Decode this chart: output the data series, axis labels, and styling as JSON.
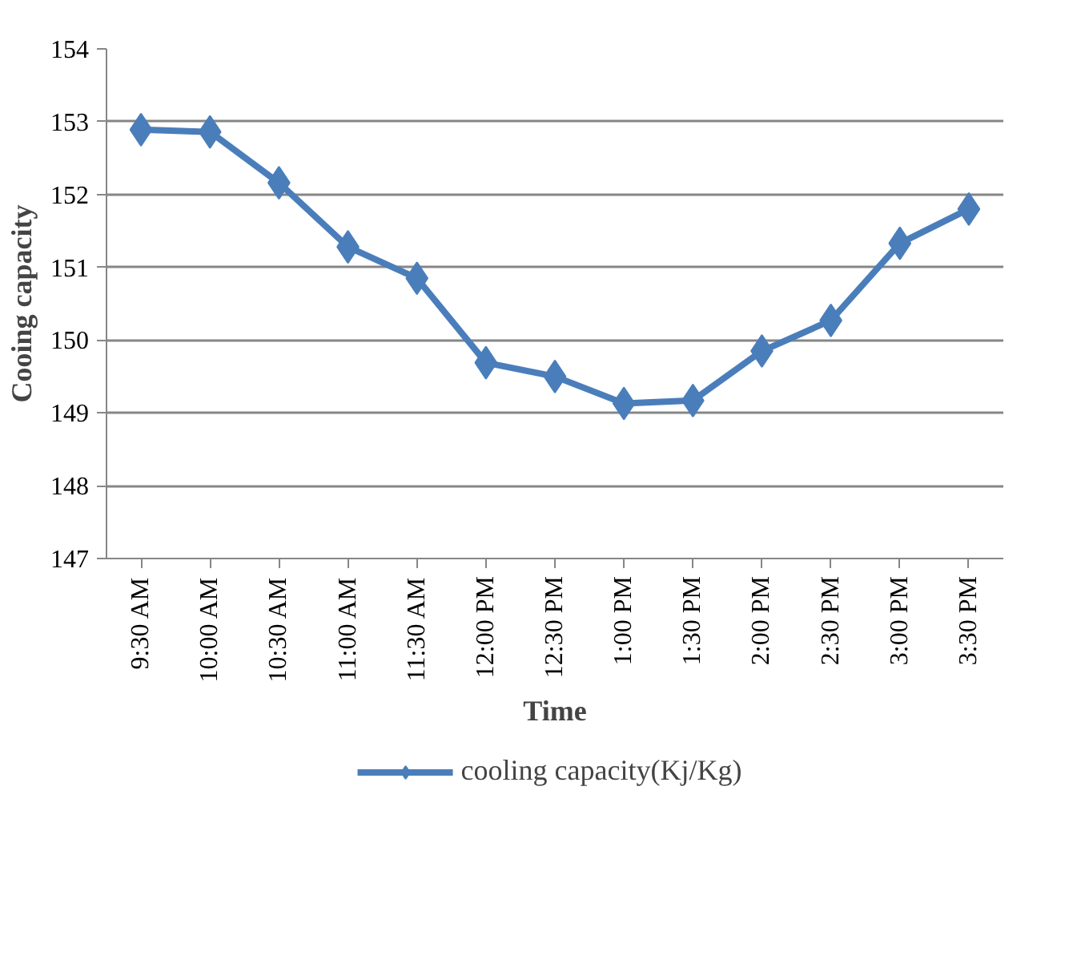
{
  "chart_data": {
    "type": "line",
    "xlabel": "Time",
    "ylabel": "Cooing capacity",
    "categories": [
      "9:30 AM",
      "10:00 AM",
      "10:30 AM",
      "11:00 AM",
      "11:30 AM",
      "12:00 PM",
      "12:30 PM",
      "1:00 PM",
      "1:30 PM",
      "2:00 PM",
      "2:30 PM",
      "3:00 PM",
      "3:30 PM"
    ],
    "series": [
      {
        "name": "cooling capacity(Kj/Kg)",
        "color": "#4a7ebb",
        "values": [
          152.89,
          152.86,
          152.16,
          151.28,
          150.85,
          149.69,
          149.5,
          149.13,
          149.17,
          149.85,
          150.27,
          151.33,
          151.8
        ]
      }
    ],
    "ylim": [
      147,
      154
    ],
    "yticks": [
      147,
      148,
      149,
      150,
      151,
      152,
      153,
      154
    ],
    "grid": "y",
    "legend": "bottom",
    "marker": "diamond",
    "line_style": "solid"
  }
}
